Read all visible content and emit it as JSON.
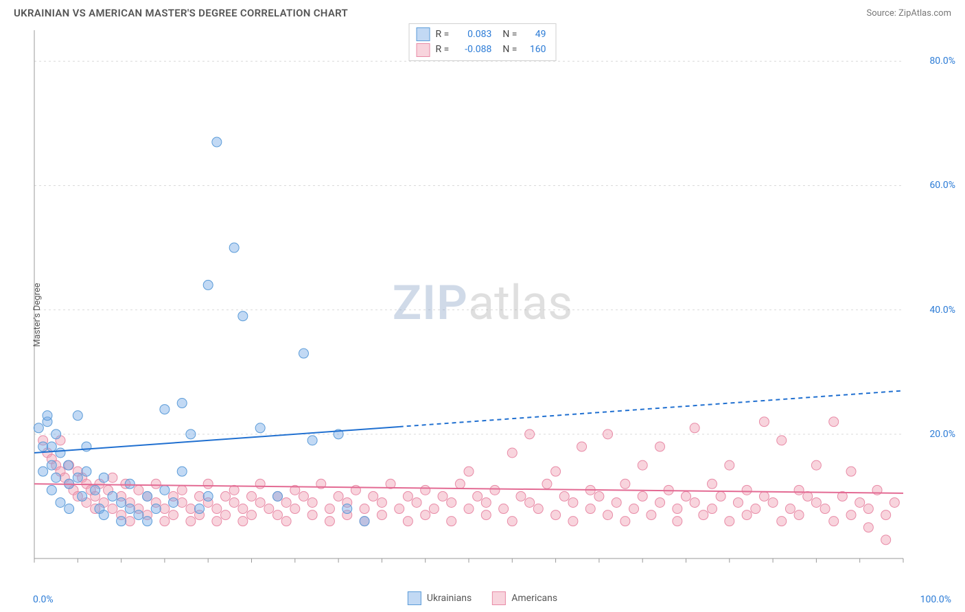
{
  "header": {
    "title": "UKRAINIAN VS AMERICAN MASTER'S DEGREE CORRELATION CHART",
    "source": "Source: ZipAtlas.com"
  },
  "ylabel": "Master's Degree",
  "watermark": {
    "part1": "ZIP",
    "part2": "atlas"
  },
  "axes": {
    "x_min_label": "0.0%",
    "x_max_label": "100.0%",
    "xlim": [
      0,
      100
    ],
    "ylim": [
      0,
      85
    ],
    "y_ticks": [
      20,
      40,
      60,
      80
    ],
    "y_tick_labels": [
      "20.0%",
      "40.0%",
      "60.0%",
      "80.0%"
    ],
    "x_minor_step": 5,
    "grid_color": "#d9d9d9",
    "axis_color": "#999999",
    "background": "#ffffff"
  },
  "series": {
    "ukrainians": {
      "label": "Ukrainians",
      "color_fill": "rgba(120,170,230,0.45)",
      "color_stroke": "#5a9bd8",
      "trend_color": "#1f6fd0",
      "marker_radius": 7,
      "R": "0.083",
      "N": "49",
      "trend": {
        "x1": 0,
        "y1": 17,
        "x2": 100,
        "y2": 27,
        "solid_until_x": 42
      },
      "points": [
        [
          0.5,
          21
        ],
        [
          1,
          18
        ],
        [
          1,
          14
        ],
        [
          1.5,
          22
        ],
        [
          1.5,
          23
        ],
        [
          2,
          18
        ],
        [
          2,
          11
        ],
        [
          2,
          15
        ],
        [
          2.5,
          20
        ],
        [
          2.5,
          13
        ],
        [
          3,
          17
        ],
        [
          3,
          9
        ],
        [
          3.9,
          15
        ],
        [
          4,
          12
        ],
        [
          4,
          8
        ],
        [
          5,
          23
        ],
        [
          5,
          13
        ],
        [
          5.5,
          10
        ],
        [
          6,
          18
        ],
        [
          6,
          14
        ],
        [
          7,
          11
        ],
        [
          7.5,
          8
        ],
        [
          8,
          7
        ],
        [
          8,
          13
        ],
        [
          9,
          10
        ],
        [
          10,
          9
        ],
        [
          10,
          6
        ],
        [
          11,
          8
        ],
        [
          11,
          12
        ],
        [
          12,
          7
        ],
        [
          13,
          10
        ],
        [
          13,
          6
        ],
        [
          14,
          8
        ],
        [
          15,
          24
        ],
        [
          15,
          11
        ],
        [
          16,
          9
        ],
        [
          17,
          25
        ],
        [
          17,
          14
        ],
        [
          18,
          20
        ],
        [
          19,
          8
        ],
        [
          20,
          10
        ],
        [
          20,
          44
        ],
        [
          21,
          67
        ],
        [
          23,
          50
        ],
        [
          24,
          39
        ],
        [
          26,
          21
        ],
        [
          28,
          10
        ],
        [
          31,
          33
        ],
        [
          32,
          19
        ],
        [
          35,
          20
        ],
        [
          36,
          8
        ],
        [
          38,
          6
        ]
      ]
    },
    "americans": {
      "label": "Americans",
      "color_fill": "rgba(240,160,180,0.45)",
      "color_stroke": "#e88aa6",
      "trend_color": "#e36a93",
      "marker_radius": 7,
      "R": "-0.088",
      "N": "160",
      "trend": {
        "x1": 0,
        "y1": 12,
        "x2": 100,
        "y2": 10.5,
        "solid_until_x": 100
      },
      "points": [
        [
          1,
          19
        ],
        [
          1.5,
          17
        ],
        [
          2,
          16
        ],
        [
          2.5,
          15
        ],
        [
          3,
          19
        ],
        [
          3,
          14
        ],
        [
          3.5,
          13
        ],
        [
          4,
          15
        ],
        [
          4,
          12
        ],
        [
          4.5,
          11
        ],
        [
          5,
          14
        ],
        [
          5,
          10
        ],
        [
          5.5,
          13
        ],
        [
          6,
          12
        ],
        [
          6,
          9
        ],
        [
          6.5,
          11
        ],
        [
          7,
          10
        ],
        [
          7,
          8
        ],
        [
          7.5,
          12
        ],
        [
          8,
          9
        ],
        [
          8.5,
          11
        ],
        [
          9,
          8
        ],
        [
          9,
          13
        ],
        [
          10,
          10
        ],
        [
          10,
          7
        ],
        [
          10.5,
          12
        ],
        [
          11,
          9
        ],
        [
          11,
          6
        ],
        [
          12,
          11
        ],
        [
          12,
          8
        ],
        [
          13,
          10
        ],
        [
          13,
          7
        ],
        [
          14,
          9
        ],
        [
          14,
          12
        ],
        [
          15,
          8
        ],
        [
          15,
          6
        ],
        [
          16,
          10
        ],
        [
          16,
          7
        ],
        [
          17,
          9
        ],
        [
          17,
          11
        ],
        [
          18,
          8
        ],
        [
          18,
          6
        ],
        [
          19,
          10
        ],
        [
          19,
          7
        ],
        [
          20,
          9
        ],
        [
          20,
          12
        ],
        [
          21,
          8
        ],
        [
          21,
          6
        ],
        [
          22,
          10
        ],
        [
          22,
          7
        ],
        [
          23,
          9
        ],
        [
          23,
          11
        ],
        [
          24,
          8
        ],
        [
          24,
          6
        ],
        [
          25,
          10
        ],
        [
          25,
          7
        ],
        [
          26,
          9
        ],
        [
          26,
          12
        ],
        [
          27,
          8
        ],
        [
          28,
          10
        ],
        [
          28,
          7
        ],
        [
          29,
          9
        ],
        [
          29,
          6
        ],
        [
          30,
          11
        ],
        [
          30,
          8
        ],
        [
          31,
          10
        ],
        [
          32,
          7
        ],
        [
          32,
          9
        ],
        [
          33,
          12
        ],
        [
          34,
          8
        ],
        [
          34,
          6
        ],
        [
          35,
          10
        ],
        [
          36,
          9
        ],
        [
          36,
          7
        ],
        [
          37,
          11
        ],
        [
          38,
          8
        ],
        [
          38,
          6
        ],
        [
          39,
          10
        ],
        [
          40,
          9
        ],
        [
          40,
          7
        ],
        [
          41,
          12
        ],
        [
          42,
          8
        ],
        [
          43,
          10
        ],
        [
          43,
          6
        ],
        [
          44,
          9
        ],
        [
          45,
          11
        ],
        [
          45,
          7
        ],
        [
          46,
          8
        ],
        [
          47,
          10
        ],
        [
          48,
          9
        ],
        [
          48,
          6
        ],
        [
          49,
          12
        ],
        [
          50,
          8
        ],
        [
          50,
          14
        ],
        [
          51,
          10
        ],
        [
          52,
          7
        ],
        [
          52,
          9
        ],
        [
          53,
          11
        ],
        [
          54,
          8
        ],
        [
          55,
          17
        ],
        [
          55,
          6
        ],
        [
          56,
          10
        ],
        [
          57,
          9
        ],
        [
          57,
          20
        ],
        [
          58,
          8
        ],
        [
          59,
          12
        ],
        [
          60,
          7
        ],
        [
          60,
          14
        ],
        [
          61,
          10
        ],
        [
          62,
          9
        ],
        [
          62,
          6
        ],
        [
          63,
          18
        ],
        [
          64,
          8
        ],
        [
          64,
          11
        ],
        [
          65,
          10
        ],
        [
          66,
          7
        ],
        [
          66,
          20
        ],
        [
          67,
          9
        ],
        [
          68,
          12
        ],
        [
          68,
          6
        ],
        [
          69,
          8
        ],
        [
          70,
          10
        ],
        [
          70,
          15
        ],
        [
          71,
          7
        ],
        [
          72,
          9
        ],
        [
          72,
          18
        ],
        [
          73,
          11
        ],
        [
          74,
          8
        ],
        [
          74,
          6
        ],
        [
          75,
          10
        ],
        [
          76,
          9
        ],
        [
          76,
          21
        ],
        [
          77,
          7
        ],
        [
          78,
          12
        ],
        [
          78,
          8
        ],
        [
          79,
          10
        ],
        [
          80,
          6
        ],
        [
          80,
          15
        ],
        [
          81,
          9
        ],
        [
          82,
          11
        ],
        [
          82,
          7
        ],
        [
          83,
          8
        ],
        [
          84,
          22
        ],
        [
          84,
          10
        ],
        [
          85,
          9
        ],
        [
          86,
          6
        ],
        [
          86,
          19
        ],
        [
          87,
          8
        ],
        [
          88,
          11
        ],
        [
          88,
          7
        ],
        [
          89,
          10
        ],
        [
          90,
          9
        ],
        [
          90,
          15
        ],
        [
          91,
          8
        ],
        [
          92,
          22
        ],
        [
          92,
          6
        ],
        [
          93,
          10
        ],
        [
          94,
          7
        ],
        [
          94,
          14
        ],
        [
          95,
          9
        ],
        [
          96,
          8
        ],
        [
          96,
          5
        ],
        [
          97,
          11
        ],
        [
          98,
          7
        ],
        [
          98,
          3
        ],
        [
          99,
          9
        ]
      ]
    }
  },
  "bottom_legend": [
    "Ukrainians",
    "Americans"
  ]
}
